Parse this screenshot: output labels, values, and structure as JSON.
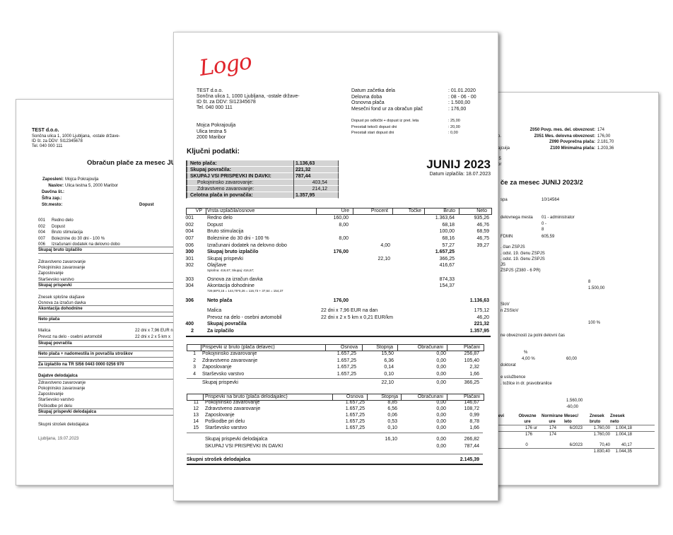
{
  "left_document": {
    "company_name": "TEST d.o.o.",
    "company_address": [
      "Sončna ulica 1, 1000 Ljubljana, -ostale države-",
      "ID št. za DDV: SI12345678",
      "Tel. 040 000 111"
    ],
    "title": "Obračun plače za mesec JUNI",
    "employee": {
      "name_label": "Zaposleni:",
      "name": "Mojca Pokrajoulja",
      "address_label": "Naslov:",
      "address": "Ulica testna 5, 2000 Maribor",
      "tax_label": "Davčna št.:",
      "code_label": "Šifra zap.:",
      "cost_center_label": "Str.mesto:",
      "leave_label": "Dopust"
    },
    "earnings": [
      {
        "code": "001",
        "name": "Redno delo"
      },
      {
        "code": "002",
        "name": "Dopust"
      },
      {
        "code": "004",
        "name": "Bruto stimulacija"
      },
      {
        "code": "007",
        "name": "Boleznine do 30 dni - 100 %"
      },
      {
        "code": "006",
        "name": "Izračunani dodatek na delovno dobo"
      }
    ],
    "gross_total": "Skupaj bruto izplačilo",
    "contributions": [
      "Zdravstveno zavarovanje",
      "Pokojninsko zavarovanje",
      "Zaposlovanje",
      "Starševsko varstvo"
    ],
    "contributions_total": "Skupaj prispevki",
    "tax": [
      "Znesek splošne olajšave",
      "Osnova za izračun davka"
    ],
    "tax_advance": "Akontacija dohodnine",
    "net_pay": "Neto plača",
    "reimbursements": [
      {
        "name": "Malica",
        "calc": "22 dni x 7,96 EUR n"
      },
      {
        "name": "Prevoz na delo - osebni avtomobil",
        "calc": "22 dni x 2 x 5 km x"
      }
    ],
    "reimbursements_total": "Skupaj povračila",
    "net_plus": "Neto plača + nadomestila in povračila stroškov",
    "payout": "Za izplačilo na TR SI56 0443 0000 0256 970",
    "employer_heading": "Dajatve delodajalca",
    "employer_items": [
      "Zdravstveno zavarovanje",
      "Pokojninsko zavarovanje",
      "Zaposlovanje",
      "Starševsko varstvo",
      "Poškodbe pri delu"
    ],
    "employer_total": "Skupaj prispevki delodajalca",
    "employer_cost": "Skupni strošek delodajalca",
    "place_date": "Ljubljana, 19.07.2023"
  },
  "right_document": {
    "stats": [
      {
        "label": "Z050 Povp. mes. del. obveznost:",
        "value": "174"
      },
      {
        "label": "Z051 Mes. delovna obveznost:",
        "value": "176,00"
      },
      {
        "label": "Z090 Povprečna plača:",
        "value": "2.181,70"
      },
      {
        "label": "Z100 Minimalna plača:",
        "value": "1.203,36"
      }
    ],
    "fragments": [
      "o.",
      "ajcuija",
      ":5",
      "or"
    ],
    "title": "če za mesec JUNIJ 2023/2",
    "lines": [
      "spa",
      "10/14564",
      "delovnega mesta",
      "01 - administrator",
      "0 -",
      "8",
      "FDMN",
      "605,59",
      ". član ZSPJS",
      ". odst. 19. členu ZSPJS",
      ". odst. 19. členu ZSPJS",
      "JS",
      "ZSPJS (Z380 - 6 PR)",
      "8",
      "1.500,00",
      "SloV",
      "n ZSSloV",
      "100 %",
      "ne obveznosti za polni delovni čas",
      "%",
      "4,00 %",
      "60,00",
      "doktorat",
      "e uslužbence",
      ". tožilce in dr. pravobranilce",
      "1.560,00",
      "-60,00"
    ],
    "table": {
      "headers": [
        "nevi",
        "Obvezne",
        "ure",
        "Normirane",
        "ure",
        "Mesec/",
        "leto",
        "Znesek",
        "bruto",
        "Znesek",
        "neto"
      ],
      "rows": [
        [
          "176 ur",
          "174",
          "6/2023",
          "1.760,00",
          "1.004,18"
        ],
        [
          "176",
          "174",
          "1.760,00",
          "1.004,18"
        ],
        [
          "0",
          "6/2023",
          "70,40",
          "40,17"
        ],
        [
          "1.830,40",
          "1.044,35"
        ]
      ]
    }
  },
  "payslip": {
    "logo": "Logo",
    "company": [
      "TEST d.o.o.",
      "Sončna ulica 1, 1000 Ljubljana, -ostale države-",
      "ID št. za DDV: SI12345678",
      "Tel. 040 000 111"
    ],
    "employee": [
      "Mojca Pokrajoulja",
      "Ulica testna 5",
      "2000 Maribor"
    ],
    "info": [
      {
        "label": "Datum začetka dela",
        "value": ": 01.01.2020"
      },
      {
        "label": "Delovna doba",
        "value": ": 08 - 06 - 00"
      },
      {
        "label": "Osnovna plača",
        "value": ": 1.500,00"
      },
      {
        "label": "Mesečni fond ur za obračun plač",
        "value": ": 176,00"
      }
    ],
    "leave": [
      {
        "label": "Dopust po odločbi + dopust iz pret. leta",
        "value": ": 25,00"
      },
      {
        "label": "Preostali tekoči dopust dni",
        "value": ": 20,00"
      },
      {
        "label": "Preostali stari dopust dni",
        "value": ": 0,00"
      }
    ],
    "key_data": {
      "heading": "Ključni podatki:",
      "rows": [
        {
          "label": "Neto plača:",
          "value": "1.136,63",
          "style": "bold"
        },
        {
          "label": "Skupaj povračila:",
          "value": "221,32",
          "style": "bold"
        },
        {
          "label": "SKUPAJ VSI PRISPEVKI IN DAVKI:",
          "value": "787,44",
          "style": "bold"
        },
        {
          "label": "Pokojninsko zavarovanje:",
          "value": "403,54",
          "style": "indent"
        },
        {
          "label": "Zdravstveno zavarovanje:",
          "value": "214,12",
          "style": "indent"
        },
        {
          "label": "Celotna plača in povračila:",
          "value": "1.357,95",
          "style": "bold"
        }
      ]
    },
    "period": "JUNIJ 2023",
    "payment_date": "Datum izplačila: 18.07.2023",
    "earnings_table": {
      "headers": {
        "vp": "VP",
        "name": "Vrsta izplačila/osnove",
        "ure": "Ure",
        "procent": "Procent",
        "tocke": "Točke",
        "bruto": "Bruto",
        "neto": "Neto"
      },
      "rows": [
        {
          "vp": "001",
          "name": "Redno delo",
          "ure": "160,00",
          "bruto": "1.363,64",
          "neto": "935,26"
        },
        {
          "vp": "002",
          "name": "Dopust",
          "ure": "8,00",
          "bruto": "68,18",
          "neto": "46,76"
        },
        {
          "vp": "004",
          "name": "Bruto stimulacija",
          "bruto": "100,00",
          "neto": "68,59"
        },
        {
          "vp": "007",
          "name": "Boleznine do 30 dni - 100 %",
          "ure": "8,00",
          "bruto": "68,16",
          "neto": "46,75"
        },
        {
          "vp": "006",
          "name": "Izračunani dodatek na delovno dobo",
          "procent": "4,00",
          "bruto": "57,27",
          "neto": "39,27"
        },
        {
          "vp": "300",
          "name": "Skupaj bruto izplačilo",
          "ure": "176,00",
          "bruto": "1.657,25",
          "bold": true
        },
        {
          "vp": "301",
          "name": "Skupaj prispevki",
          "procent": "22,10",
          "bruto": "366,25"
        },
        {
          "vp": "302",
          "name": "Olajšave",
          "bruto": "416,67",
          "note": "Splošna: 416,67; Skupaj: 416,67;"
        },
        {
          "vp": "303",
          "name": "Osnova za izračun davka",
          "bruto": "874,33"
        },
        {
          "vp": "304",
          "name": "Akontacija dohodnine",
          "bruto": "154,37",
          "note": "729,58*0,16 = 144,75*0,26 = 116,73 + 37,64 = 154,37"
        },
        {
          "vp": "306",
          "name": "Neto plača",
          "ure": "176,00",
          "neto": "1.136,63",
          "bold": true
        },
        {
          "name": "Malica",
          "calc": "22 dni x 7,96 EUR na dan",
          "neto": "175,12"
        },
        {
          "name": "Prevoz na delo - osebni avtomobil",
          "calc": "22 dni x 2 x 5 km x 0,21 EUR/km",
          "neto": "46,20"
        },
        {
          "vp": "400",
          "name": "Skupaj povračila",
          "neto": "221,32",
          "bold": true
        },
        {
          "vp": "2",
          "name": "Za izplačilo",
          "neto": "1.357,95",
          "bold": true
        }
      ]
    },
    "employee_contrib": {
      "headers": {
        "name": "Prispevki iz bruto (plača delavec)",
        "osnova": "Osnova",
        "stopnja": "Stopnja",
        "obr": "Obračunani",
        "plac": "Plačani"
      },
      "rows": [
        {
          "num": "1",
          "name": "Pokojninsko zavarovanje",
          "osnova": "1.657,25",
          "stopnja": "15,50",
          "obr": "0,00",
          "plac": "256,87"
        },
        {
          "num": "2",
          "name": "Zdravstveno zavarovanje",
          "osnova": "1.657,25",
          "stopnja": "6,36",
          "obr": "0,00",
          "plac": "105,40"
        },
        {
          "num": "3",
          "name": "Zaposlovanje",
          "osnova": "1.657,25",
          "stopnja": "0,14",
          "obr": "0,00",
          "plac": "2,32"
        },
        {
          "num": "4",
          "name": "Starševsko varstvo",
          "osnova": "1.657,25",
          "stopnja": "0,10",
          "obr": "0,00",
          "plac": "1,66"
        },
        {
          "name": "Skupaj prispevki",
          "stopnja": "22,10",
          "obr": "0,00",
          "plac": "366,25"
        }
      ]
    },
    "employer_contrib": {
      "headers": {
        "name": "Prispevki na bruto (plača delodajalec)",
        "osnova": "Osnova",
        "stopnja": "Stopnja",
        "obr": "Obračunani",
        "plac": "Plačani"
      },
      "rows": [
        {
          "num": "11",
          "name": "Pokojninsko zavarovanje",
          "osnova": "1.657,25",
          "stopnja": "8,85",
          "obr": "0,00",
          "plac": "146,67"
        },
        {
          "num": "12",
          "name": "Zdravstveno zavarovanje",
          "osnova": "1.657,25",
          "stopnja": "6,56",
          "obr": "0,00",
          "plac": "108,72"
        },
        {
          "num": "13",
          "name": "Zaposlovanje",
          "osnova": "1.657,25",
          "stopnja": "0,06",
          "obr": "0,00",
          "plac": "0,99"
        },
        {
          "num": "14",
          "name": "Poškodbe pri delu",
          "osnova": "1.657,25",
          "stopnja": "0,53",
          "obr": "0,00",
          "plac": "8,78"
        },
        {
          "num": "15",
          "name": "Starševsko varstvo",
          "osnova": "1.657,25",
          "stopnja": "0,10",
          "obr": "0,00",
          "plac": "1,66"
        },
        {
          "name": "Skupaj prispevki delodajalca",
          "stopnja": "16,10",
          "obr": "0,00",
          "plac": "266,82"
        },
        {
          "name": "SKUPAJ VSI PRISPEVKI IN DAVKI",
          "obr": "0,00",
          "plac": "787,44"
        }
      ]
    },
    "total_cost": {
      "label": "Skupni strošek delodajalca",
      "value": "2.145,39"
    }
  }
}
